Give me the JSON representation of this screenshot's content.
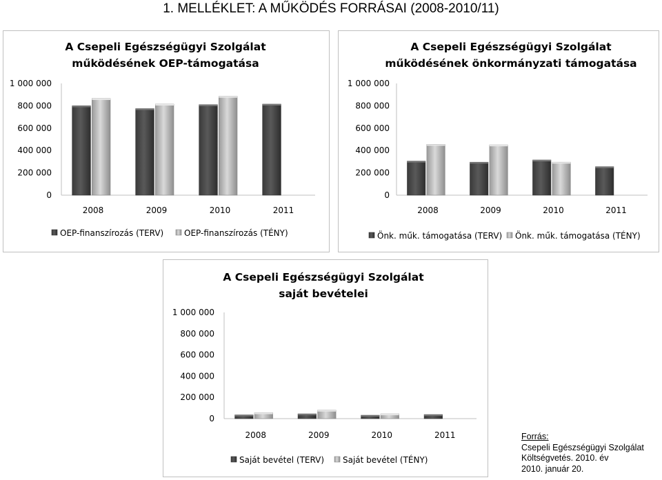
{
  "page_title": "1. MELLÉKLET: A MŰKÖDÉS FORRÁSAI (2008-2010/11)",
  "colors": {
    "terv": "#595959",
    "teny": "#bfbfbf",
    "border": "#bfbfbf",
    "axis": "#bfbfbf"
  },
  "chart_data": [
    {
      "type": "bar",
      "title_lines": [
        "A Csepeli Egészségügyi Szolgálat",
        "működésének OEP-támogatása"
      ],
      "categories": [
        "2008",
        "2009",
        "2010",
        "2011"
      ],
      "ylim": [
        0,
        1000000
      ],
      "y_ticks": [
        {
          "value": 0,
          "label": "0"
        },
        {
          "value": 200000,
          "label": "200 000"
        },
        {
          "value": 400000,
          "label": "400 000"
        },
        {
          "value": 600000,
          "label": "600 000"
        },
        {
          "value": 800000,
          "label": "800 000"
        },
        {
          "value": 1000000,
          "label": "1 000 000"
        }
      ],
      "series": [
        {
          "name": "OEP-finanszírozás (TERV)",
          "values": [
            800000,
            775000,
            810000,
            815000
          ]
        },
        {
          "name": "OEP-finanszírozás (TÉNY)",
          "values": [
            865000,
            815000,
            885000,
            null
          ]
        }
      ],
      "legend_position": "bottom",
      "grid": false
    },
    {
      "type": "bar",
      "title_lines": [
        "A Csepeli Egészségügyi Szolgálat",
        "működésének önkormányzati támogatása"
      ],
      "categories": [
        "2008",
        "2009",
        "2010",
        "2011"
      ],
      "ylim": [
        0,
        1000000
      ],
      "y_ticks": [
        {
          "value": 0,
          "label": "0"
        },
        {
          "value": 200000,
          "label": "200 000"
        },
        {
          "value": 400000,
          "label": "400 000"
        },
        {
          "value": 600000,
          "label": "600 000"
        },
        {
          "value": 800000,
          "label": "800 000"
        },
        {
          "value": 1000000,
          "label": "1 000 000"
        }
      ],
      "series": [
        {
          "name": "Önk. műk. támogatása (TERV)",
          "values": [
            305000,
            295000,
            315000,
            255000
          ]
        },
        {
          "name": "Önk. műk. támogatása (TÉNY)",
          "values": [
            455000,
            450000,
            295000,
            null
          ]
        }
      ],
      "legend_position": "bottom",
      "grid": false
    },
    {
      "type": "bar",
      "title_lines": [
        "A Csepeli Egészségügyi Szolgálat",
        "saját bevételei"
      ],
      "categories": [
        "2008",
        "2009",
        "2010",
        "2011"
      ],
      "ylim": [
        0,
        1000000
      ],
      "y_ticks": [
        {
          "value": 0,
          "label": "0"
        },
        {
          "value": 200000,
          "label": "200 000"
        },
        {
          "value": 400000,
          "label": "400 000"
        },
        {
          "value": 600000,
          "label": "600 000"
        },
        {
          "value": 800000,
          "label": "800 000"
        },
        {
          "value": 1000000,
          "label": "1 000 000"
        }
      ],
      "series": [
        {
          "name": "Saját bevétel (TERV)",
          "values": [
            35000,
            45000,
            32000,
            38000
          ]
        },
        {
          "name": "Saját bevétel (TÉNY)",
          "values": [
            55000,
            80000,
            45000,
            null
          ]
        }
      ],
      "legend_position": "bottom",
      "grid": false
    }
  ],
  "source": {
    "label": "Forrás:",
    "lines": [
      "Csepeli Egészségügyi Szolgálat",
      "Költségvetés. 2010. év",
      "2010. január 20."
    ]
  }
}
